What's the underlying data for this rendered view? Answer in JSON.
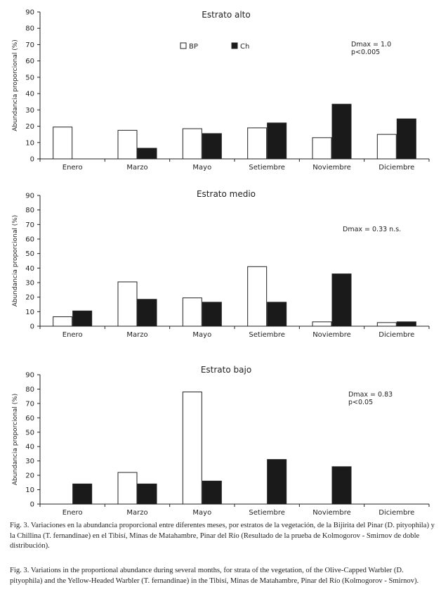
{
  "chart_data": [
    {
      "type": "bar",
      "title": "Estrato alto",
      "ylabel": "Abundancia proporcional (%)",
      "ylim": [
        0,
        90
      ],
      "yticks": [
        0,
        10,
        20,
        30,
        40,
        50,
        60,
        70,
        80,
        90
      ],
      "categories": [
        "Enero",
        "Marzo",
        "Mayo",
        "Setiembre",
        "Noviembre",
        "Diciembre"
      ],
      "series": [
        {
          "name": "BP",
          "color": "#ffffff",
          "values": [
            19.5,
            17.5,
            18.5,
            19,
            13,
            15
          ]
        },
        {
          "name": "Ch",
          "color": "#1a1a1a",
          "values": [
            0,
            6.5,
            15.5,
            22,
            33.5,
            24.5
          ]
        }
      ],
      "legend": "top-center",
      "annotations": [
        "Dmax = 1.0",
        "p<0.005"
      ]
    },
    {
      "type": "bar",
      "title": "Estrato medio",
      "ylabel": "Abundancia proporcional (%)",
      "ylim": [
        0,
        90
      ],
      "yticks": [
        0,
        10,
        20,
        30,
        40,
        50,
        60,
        70,
        80,
        90
      ],
      "categories": [
        "Enero",
        "Marzo",
        "Mayo",
        "Setiembre",
        "Noviembre",
        "Diciembre"
      ],
      "series": [
        {
          "name": "BP",
          "color": "#ffffff",
          "values": [
            6.5,
            30.5,
            19.5,
            41,
            3,
            2.5
          ]
        },
        {
          "name": "Ch",
          "color": "#1a1a1a",
          "values": [
            10.5,
            18.5,
            16.5,
            16.5,
            36,
            3
          ]
        }
      ],
      "annotations": [
        "Dmax = 0.33 n.s."
      ]
    },
    {
      "type": "bar",
      "title": "Estrato bajo",
      "ylabel": "Abundancia proporcional (%)",
      "ylim": [
        0,
        90
      ],
      "yticks": [
        0,
        10,
        20,
        30,
        40,
        50,
        60,
        70,
        80,
        90
      ],
      "categories": [
        "Enero",
        "Marzo",
        "Mayo",
        "Setiembre",
        "Noviembre",
        "Diciembre"
      ],
      "series": [
        {
          "name": "BP",
          "color": "#ffffff",
          "values": [
            0,
            22,
            78,
            0,
            0,
            0
          ]
        },
        {
          "name": "Ch",
          "color": "#1a1a1a",
          "values": [
            14,
            14,
            16,
            31,
            26,
            0
          ]
        }
      ],
      "annotations": [
        "Dmax = 0.83",
        "p<0.05"
      ]
    }
  ],
  "captions": {
    "spanish": "Fig. 3. Variaciones en la abundancia proporcional entre diferentes meses, por estratos de la vegetación, de la Bijirita del Pinar (D. pityophila) y la Chillina (T. fernandinae) en el Tibisí, Minas de Matahambre, Pinar del Río (Resultado de la prueba de Kolmogorov - Smirnov de doble distribución).",
    "english": "Fig. 3. Variations in the proportional abundance during several months, for strata of the vegetation, of the Olive-Capped Warbler (D. pityophila) and the Yellow-Headed Warbler (T. fernandinae) in the Tibisí, Minas de Matahambre, Pinar del Río (Kolmogorov - Smirnov)."
  }
}
